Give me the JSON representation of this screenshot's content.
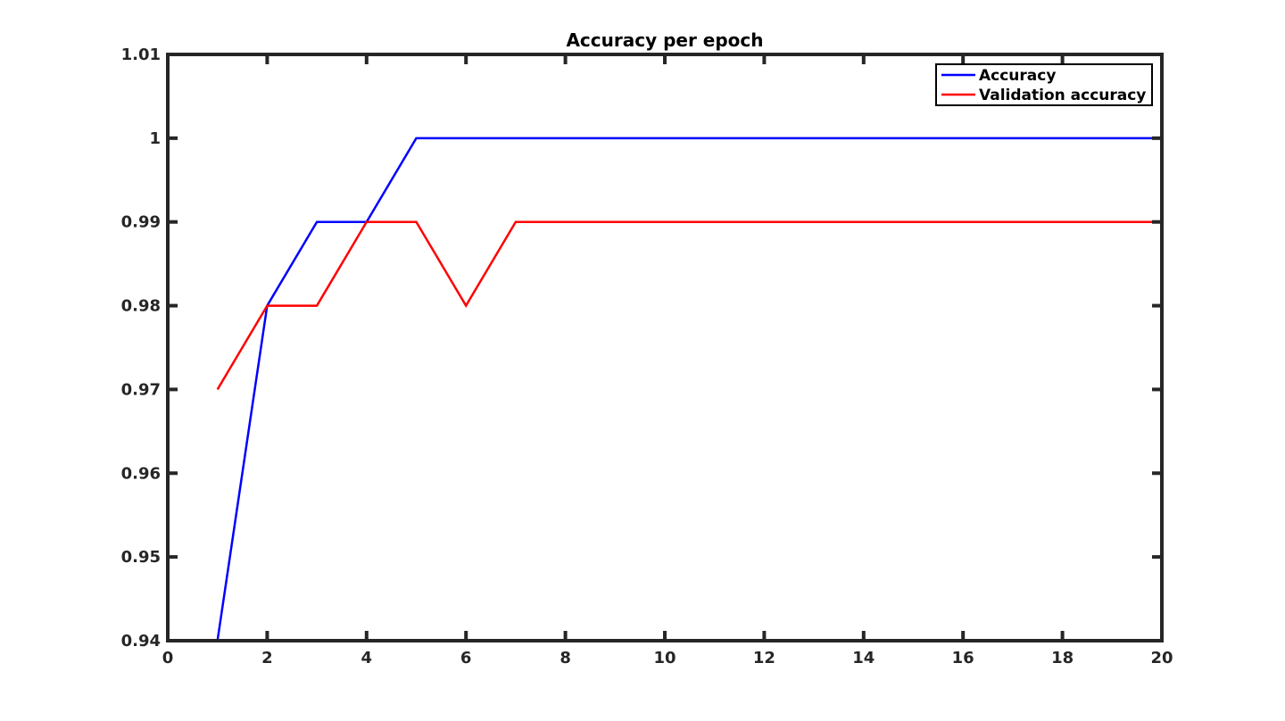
{
  "chart_data": {
    "type": "line",
    "title": "Accuracy per epoch",
    "xlabel": "",
    "ylabel": "",
    "xlim": [
      0,
      20
    ],
    "ylim": [
      0.94,
      1.01
    ],
    "x_ticks": [
      "0",
      "2",
      "4",
      "6",
      "8",
      "10",
      "12",
      "14",
      "16",
      "18",
      "20"
    ],
    "y_ticks": [
      "0.94",
      "0.95",
      "0.96",
      "0.97",
      "0.98",
      "0.99",
      "1",
      "1.01"
    ],
    "grid": false,
    "legend_position": "top-right",
    "x": [
      1,
      2,
      3,
      4,
      5,
      6,
      7,
      8,
      9,
      10,
      11,
      12,
      13,
      14,
      15,
      16,
      17,
      18,
      19,
      20
    ],
    "series": [
      {
        "name": "Accuracy",
        "color": "#0000ff",
        "values": [
          0.94,
          0.98,
          0.99,
          0.99,
          1,
          1,
          1,
          1,
          1,
          1,
          1,
          1,
          1,
          1,
          1,
          1,
          1,
          1,
          1,
          1
        ]
      },
      {
        "name": "Validation accuracy",
        "color": "#ff0000",
        "values": [
          0.97,
          0.98,
          0.98,
          0.99,
          0.99,
          0.98,
          0.99,
          0.99,
          0.99,
          0.99,
          0.99,
          0.99,
          0.99,
          0.99,
          0.99,
          0.99,
          0.99,
          0.99,
          0.99,
          0.99
        ]
      }
    ]
  }
}
